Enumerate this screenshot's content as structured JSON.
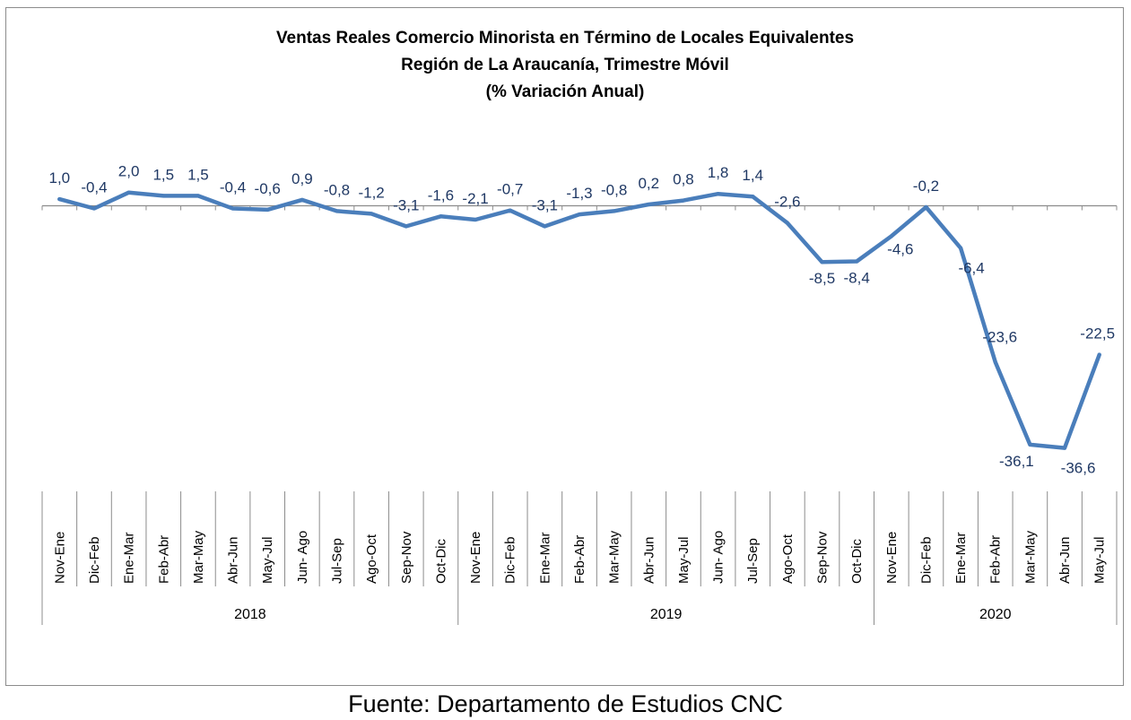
{
  "chart_data": {
    "type": "line",
    "title": "Ventas Reales Comercio Minorista  en Término de Locales Equivalentes",
    "subtitle": "Región de La Araucanía, Trimestre Móvil",
    "subtitle2": "(% Variación Anual)",
    "categories": [
      "Nov-Ene",
      "Dic-Feb",
      "Ene-Mar",
      "Feb-Abr",
      "Mar-May",
      "Abr-Jun",
      "May-Jul",
      "Jun- Ago",
      "Jul-Sep",
      "Ago-Oct",
      "Sep-Nov",
      "Oct-Dic",
      "Nov-Ene",
      "Dic-Feb",
      "Ene-Mar",
      "Feb-Abr",
      "Mar-May",
      "Abr-Jun",
      "May-Jul",
      "Jun- Ago",
      "Jul-Sep",
      "Ago-Oct",
      "Sep-Nov",
      "Oct-Dic",
      "Nov-Ene",
      "Dic-Feb",
      "Ene-Mar",
      "Feb-Abr",
      "Mar-May",
      "Abr-Jun",
      "May-Jul"
    ],
    "years": [
      {
        "label": "2018",
        "count": 12
      },
      {
        "label": "2019",
        "count": 12
      },
      {
        "label": "2020",
        "count": 7
      }
    ],
    "series": [
      {
        "values": [
          1.0,
          -0.4,
          2.0,
          1.5,
          1.5,
          -0.4,
          -0.6,
          0.9,
          -0.8,
          -1.2,
          -3.1,
          -1.6,
          -2.1,
          -0.7,
          -3.1,
          -1.3,
          -0.8,
          0.2,
          0.8,
          1.8,
          1.4,
          -2.6,
          -8.5,
          -8.4,
          -4.6,
          -0.2,
          -6.4,
          -23.6,
          -36.1,
          -36.6,
          -22.5
        ],
        "labels": [
          "1,0",
          "-0,4",
          "2,0",
          "1,5",
          "1,5",
          "-0,4",
          "-0,6",
          "0,9",
          "-0,8",
          "-1,2",
          "-3,1",
          "-1,6",
          "-2,1",
          "-0,7",
          "-3,1",
          "-1,3",
          "-0,8",
          "0,2",
          "0,8",
          "1,8",
          "1,4",
          "-2,6",
          "-8,5",
          "-8,4",
          "-4,6",
          "-0,2",
          "-6,4",
          "-23,6",
          "-36,1",
          "-36,6",
          "-22,5"
        ],
        "color": "#4a7ebb"
      }
    ],
    "ylim": [
      -38,
      4
    ],
    "grid": false,
    "legend": "none"
  },
  "footer": {
    "source": "Fuente: Departamento de Estudios CNC"
  }
}
